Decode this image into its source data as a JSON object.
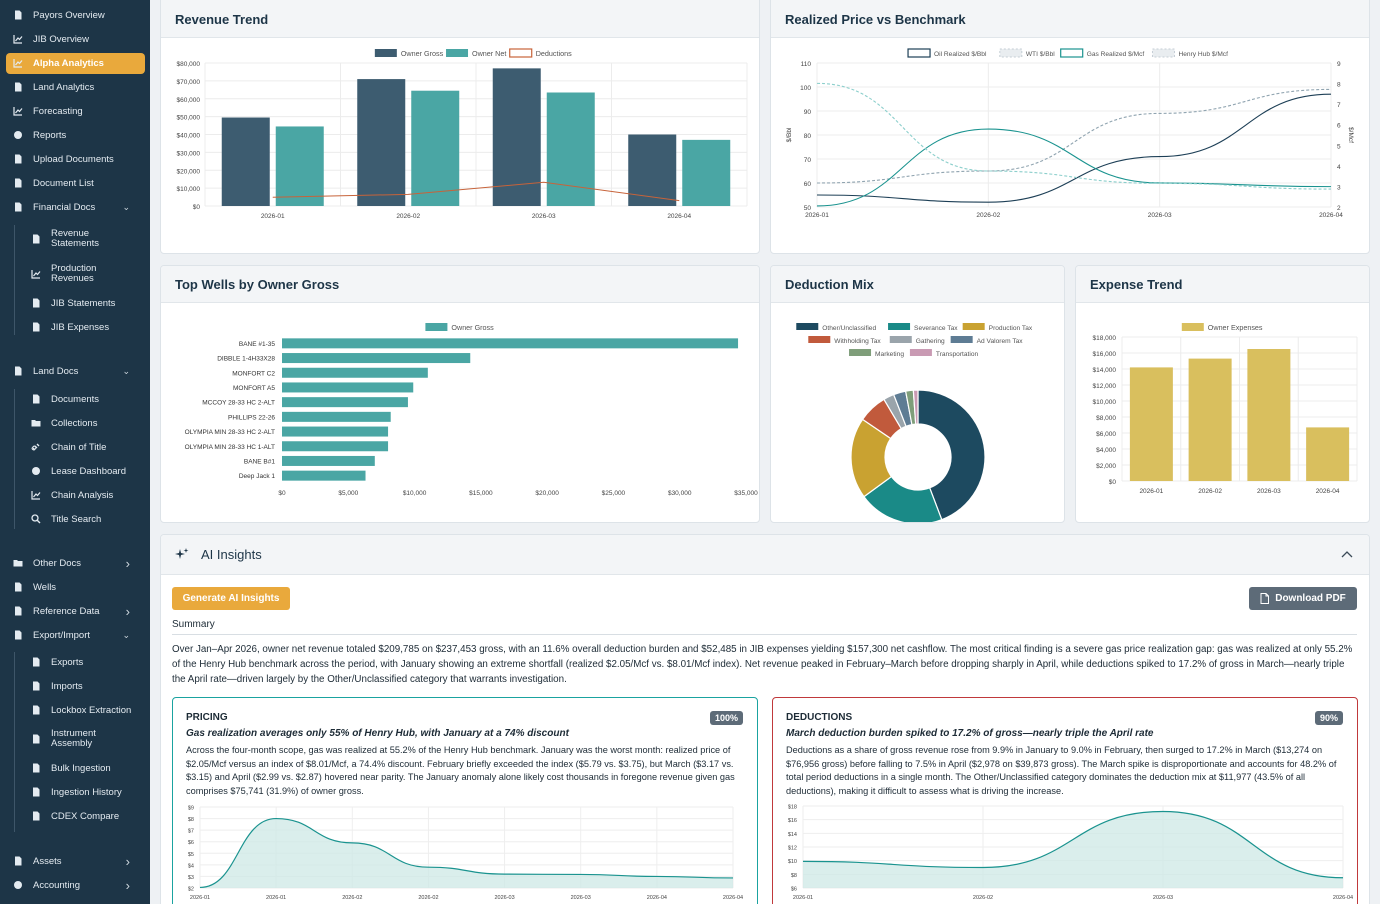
{
  "sidebar": {
    "items": [
      {
        "label": "Payors Overview",
        "icon": "document-icon"
      },
      {
        "label": "JIB Overview",
        "icon": "chart-line-icon"
      },
      {
        "label": "Alpha Analytics",
        "icon": "chart-line-icon",
        "active": true
      },
      {
        "label": "Land Analytics",
        "icon": "map-icon"
      },
      {
        "label": "Forecasting",
        "icon": "chart-line-icon"
      },
      {
        "label": "Reports",
        "icon": "pie-icon"
      },
      {
        "label": "Upload Documents",
        "icon": "cloud-upload-icon"
      },
      {
        "label": "Document List",
        "icon": "document-icon"
      },
      {
        "label": "Financial Docs",
        "icon": "document-icon",
        "chevron": "down"
      },
      {
        "label": "Revenue Statements",
        "icon": "document-icon"
      },
      {
        "label": "Production Revenues",
        "icon": "chart-line-icon"
      },
      {
        "label": "JIB Statements",
        "icon": "document-icon"
      },
      {
        "label": "JIB Expenses",
        "icon": "document-icon"
      },
      {
        "label": "Land Docs",
        "icon": "buildings-icon",
        "chevron": "down"
      },
      {
        "label": "Documents",
        "icon": "document-icon"
      },
      {
        "label": "Collections",
        "icon": "folder-icon"
      },
      {
        "label": "Chain of Title",
        "icon": "link-icon"
      },
      {
        "label": "Lease Dashboard",
        "icon": "circle-icon"
      },
      {
        "label": "Chain Analysis",
        "icon": "bar-chart-icon"
      },
      {
        "label": "Title Search",
        "icon": "search-icon"
      },
      {
        "label": "Other Docs",
        "icon": "folder-icon",
        "chevron": "right"
      },
      {
        "label": "Wells",
        "icon": "oil-icon"
      },
      {
        "label": "Reference Data",
        "icon": "table-icon",
        "chevron": "right"
      },
      {
        "label": "Export/Import",
        "icon": "swap-icon",
        "chevron": "down"
      },
      {
        "label": "Exports",
        "icon": "export-icon"
      },
      {
        "label": "Imports",
        "icon": "import-icon"
      },
      {
        "label": "Lockbox Extraction",
        "icon": "lock-icon"
      },
      {
        "label": "Instrument Assembly",
        "icon": "layers-icon"
      },
      {
        "label": "Bulk Ingestion",
        "icon": "nodes-icon"
      },
      {
        "label": "Ingestion History",
        "icon": "history-icon"
      },
      {
        "label": "CDEX Compare",
        "icon": "compare-icon"
      },
      {
        "label": "Assets",
        "icon": "assets-icon",
        "chevron": "right"
      },
      {
        "label": "Accounting",
        "icon": "globe-icon",
        "chevron": "right"
      }
    ]
  },
  "colors": {
    "accent": "#e9a93c",
    "sidebar": "#1d3547",
    "navy": "#3d5c70",
    "teal": "#4aa6a4",
    "gold": "#d9bf5e",
    "deductions_line": "#c7633a",
    "pricing_border": "#1aa3a0",
    "deductions_border": "#c0393b"
  },
  "cards": {
    "revenue_trend": "Revenue Trend",
    "realized_price": "Realized Price vs Benchmark",
    "top_wells": "Top Wells by Owner Gross",
    "deduction_mix": "Deduction Mix",
    "expense_trend": "Expense Trend"
  },
  "ai": {
    "title": "AI Insights",
    "generate_label": "Generate AI Insights",
    "download_label": "Download PDF",
    "summary_label": "Summary",
    "summary_text": "Over Jan–Apr 2026, owner net revenue totaled $209,785 on $237,453 gross, with an 11.6% overall deduction burden and $52,485 in JIB expenses yielding $157,300 net cashflow. The most critical finding is a severe gas price realization gap: gas was realized at only 55.2% of the Henry Hub benchmark across the period, with January showing an extreme shortfall (realized $2.05/Mcf vs. $8.01/Mcf index). Net revenue peaked in February–March before dropping sharply in April, while deductions spiked to 17.2% of gross in March—nearly triple the April rate—driven largely by the Other/Unclassified category that warrants investigation.",
    "insights": [
      {
        "tag": "PRICING",
        "confidence": "100%",
        "title": "Gas realization averages only 55% of Henry Hub, with January at a 74% discount",
        "body": "Across the four-month scope, gas was realized at 55.2% of the Henry Hub benchmark. January was the worst month: realized price of $2.05/Mcf versus an index of $8.01/Mcf, a 74.4% discount. February briefly exceeded the index ($5.79 vs. $3.75), but March ($3.17 vs. $3.15) and April ($2.99 vs. $2.87) hovered near parity. The January anomaly alone likely cost thousands in foregone revenue given gas comprises $75,741 (31.9%) of owner gross."
      },
      {
        "tag": "DEDUCTIONS",
        "confidence": "90%",
        "title": "March deduction burden spiked to 17.2% of gross—nearly triple the April rate",
        "body": "Deductions as a share of gross revenue rose from 9.9% in January to 9.0% in February, then surged to 17.2% in March ($13,274 on $76,956 gross) before falling to 7.5% in April ($2,978 on $39,873 gross). The March spike is disproportionate and accounts for 48.2% of total period deductions in a single month. The Other/Unclassified category dominates the deduction mix at $11,977 (43.5% of all deductions), making it difficult to assess what is driving the increase."
      }
    ]
  },
  "chart_data": [
    {
      "id": "revenue_trend",
      "type": "bar",
      "categories": [
        "2026-01",
        "2026-02",
        "2026-03",
        "2026-04"
      ],
      "series": [
        {
          "name": "Owner Gross",
          "values": [
            49500,
            71000,
            77000,
            40000
          ],
          "color": "#3d5c70"
        },
        {
          "name": "Owner Net",
          "values": [
            44500,
            64500,
            63500,
            37000
          ],
          "color": "#4aa6a4"
        },
        {
          "name": "Deductions",
          "values": [
            4900,
            6500,
            13274,
            2978
          ],
          "type": "line",
          "color": "#c7633a"
        }
      ],
      "y_ticks": [
        "$0",
        "$10,000",
        "$20,000",
        "$30,000",
        "$40,000",
        "$50,000",
        "$60,000",
        "$70,000",
        "$80,000"
      ],
      "ylim": [
        0,
        80000
      ],
      "legend": "top"
    },
    {
      "id": "realized_price",
      "type": "line",
      "categories": [
        "2026-01",
        "2026-02",
        "2026-03",
        "2026-04"
      ],
      "series": [
        {
          "name": "Oil Realized $/Bbl",
          "axis": "left",
          "values": [
            55,
            52,
            71,
            97
          ],
          "color": "#1d3f56"
        },
        {
          "name": "WTI $/Bbl",
          "axis": "left",
          "values": [
            60,
            65,
            89,
            99
          ],
          "color": "#90a4b0",
          "dashed": true
        },
        {
          "name": "Gas Realized $/Mcf",
          "axis": "right",
          "values": [
            2.05,
            5.79,
            3.17,
            2.99
          ],
          "color": "#1a938f"
        },
        {
          "name": "Henry Hub $/Mcf",
          "axis": "right",
          "values": [
            8.01,
            3.75,
            3.15,
            2.87
          ],
          "color": "#8ccfcc",
          "dashed": true
        }
      ],
      "ylabel_left": "$/Bbl",
      "ylabel_right": "$/Mcf",
      "ylim_left": [
        50,
        110
      ],
      "ylim_right": [
        2,
        9
      ],
      "y_ticks_left": [
        "50",
        "60",
        "70",
        "80",
        "90",
        "100",
        "110"
      ],
      "y_ticks_right": [
        "2",
        "3",
        "4",
        "5",
        "6",
        "7",
        "8",
        "9"
      ],
      "legend": "top"
    },
    {
      "id": "top_wells",
      "type": "bar",
      "orientation": "horizontal",
      "categories": [
        "BANE #1-35",
        "DIBBLE 1-4H33X28",
        "MONFORT C2",
        "MONFORT A5",
        "MCCOY 28-33 HC 2-ALT",
        "PHILLIPS 22-26",
        "OLYMPIA MIN 28-33 HC 2-ALT",
        "OLYMPIA MIN 28-33 HC 1-ALT",
        "BANE B#1",
        "Deep Jack 1"
      ],
      "series": [
        {
          "name": "Owner Gross",
          "values": [
            34400,
            14200,
            11000,
            9900,
            9500,
            8200,
            8000,
            8000,
            7000,
            6300
          ],
          "color": "#4aa6a4"
        }
      ],
      "x_ticks": [
        "$0",
        "$5,000",
        "$10,000",
        "$15,000",
        "$20,000",
        "$25,000",
        "$30,000",
        "$35,000"
      ],
      "xlim": [
        0,
        35000
      ],
      "legend": "top"
    },
    {
      "id": "deduction_mix",
      "type": "pie",
      "donut": true,
      "labels": [
        "Other/Unclassified",
        "Severance Tax",
        "Production Tax",
        "Withholding Tax",
        "Gathering",
        "Ad Valorem Tax",
        "Marketing",
        "Transportation"
      ],
      "values": [
        11977,
        5600,
        5300,
        1900,
        700,
        800,
        500,
        300
      ],
      "colors": [
        "#1d4a60",
        "#1a8a87",
        "#c9a231",
        "#c15a3c",
        "#9aa4ab",
        "#5e7c94",
        "#7f9e7a",
        "#c99ab3"
      ],
      "legend": "top"
    },
    {
      "id": "expense_trend",
      "type": "bar",
      "categories": [
        "2026-01",
        "2026-02",
        "2026-03",
        "2026-04"
      ],
      "series": [
        {
          "name": "Owner Expenses",
          "values": [
            14200,
            15300,
            16500,
            6700
          ],
          "color": "#d9bf5e"
        }
      ],
      "y_ticks": [
        "$0",
        "$2,000",
        "$4,000",
        "$6,000",
        "$8,000",
        "$10,000",
        "$12,000",
        "$14,000",
        "$16,000",
        "$18,000"
      ],
      "ylim": [
        0,
        18000
      ],
      "legend": "top"
    },
    {
      "id": "pricing_mini",
      "type": "area",
      "categories": [
        "2026-01",
        "2026-01",
        "2026-02",
        "2026-02",
        "2026-03",
        "2026-03",
        "2026-04",
        "2026-04"
      ],
      "values": [
        2.05,
        8.0,
        5.9,
        3.8,
        3.2,
        3.17,
        3.0,
        2.87
      ],
      "y_ticks": [
        "$2",
        "$3",
        "$4",
        "$5",
        "$6",
        "$7",
        "$8",
        "$9"
      ],
      "ylim": [
        2,
        9
      ],
      "color": "#1a938f"
    },
    {
      "id": "deductions_mini",
      "type": "area",
      "categories": [
        "2026-01",
        "2026-02",
        "2026-03",
        "2026-04"
      ],
      "values": [
        9.9,
        9.0,
        17.2,
        7.5
      ],
      "y_ticks": [
        "$6",
        "$8",
        "$10",
        "$12",
        "$14",
        "$16",
        "$18"
      ],
      "ylim": [
        6,
        18
      ],
      "color": "#1a938f"
    }
  ]
}
